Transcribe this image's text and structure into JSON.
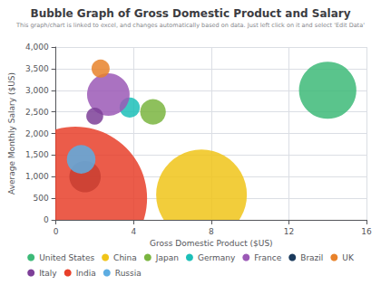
{
  "chart_data": {
    "type": "bubble",
    "title": "Bubble Graph of Gross Domestic Product and Salary",
    "subtitle": "This graph/chart is linked to excel, and changes automatically based on data. Just left click on it and select 'Edit Data'",
    "xlabel": "Gross Domestic Product ($US)",
    "ylabel": "Average Monthly Salary ($US)",
    "xlim": [
      0,
      16
    ],
    "ylim": [
      0,
      4000
    ],
    "xticks": [
      0,
      4,
      8,
      12,
      16
    ],
    "yticks": [
      0,
      500,
      {
        "value": 1000,
        "label": "1,000"
      },
      {
        "value": 1500,
        "label": "1,500"
      },
      {
        "value": 2000,
        "label": "2,000"
      },
      {
        "value": 2500,
        "label": "2,500"
      },
      {
        "value": 3000,
        "label": "3,000"
      },
      {
        "value": 3500,
        "label": "3,500"
      },
      {
        "value": 4000,
        "label": "4,000"
      }
    ],
    "grid": true,
    "legend": "bottom",
    "series": [
      {
        "name": "United States",
        "color": "#3dba78",
        "x": [
          14.0
        ],
        "values": [
          3000
        ],
        "size": [
          4000
        ]
      },
      {
        "name": "China",
        "color": "#f0c419",
        "x": [
          7.5
        ],
        "values": [
          580
        ],
        "size": [
          10000
        ]
      },
      {
        "name": "Japan",
        "color": "#7ab540",
        "x": [
          5.0
        ],
        "values": [
          2500
        ],
        "size": [
          800
        ]
      },
      {
        "name": "Germany",
        "color": "#1cbfb8",
        "x": [
          3.8
        ],
        "values": [
          2600
        ],
        "size": [
          500
        ]
      },
      {
        "name": "France",
        "color": "#9b59b6",
        "x": [
          2.7
        ],
        "values": [
          2900
        ],
        "size": [
          2200
        ]
      },
      {
        "name": "Brazil",
        "color": "#1a3a5c",
        "x": [
          1.5
        ],
        "values": [
          1000
        ],
        "size": [
          1200
        ]
      },
      {
        "name": "UK",
        "color": "#e8822a",
        "x": [
          2.3
        ],
        "values": [
          3500
        ],
        "size": [
          400
        ]
      },
      {
        "name": "Italy",
        "color": "#7d3f98",
        "x": [
          2.0
        ],
        "values": [
          2400
        ],
        "size": [
          350
        ]
      },
      {
        "name": "India",
        "color": "#e8402a",
        "x": [
          1.0
        ],
        "values": [
          500
        ],
        "size": [
          25000
        ]
      },
      {
        "name": "Russia",
        "color": "#5dade2",
        "x": [
          1.3
        ],
        "values": [
          1400
        ],
        "size": [
          1000
        ]
      }
    ]
  }
}
